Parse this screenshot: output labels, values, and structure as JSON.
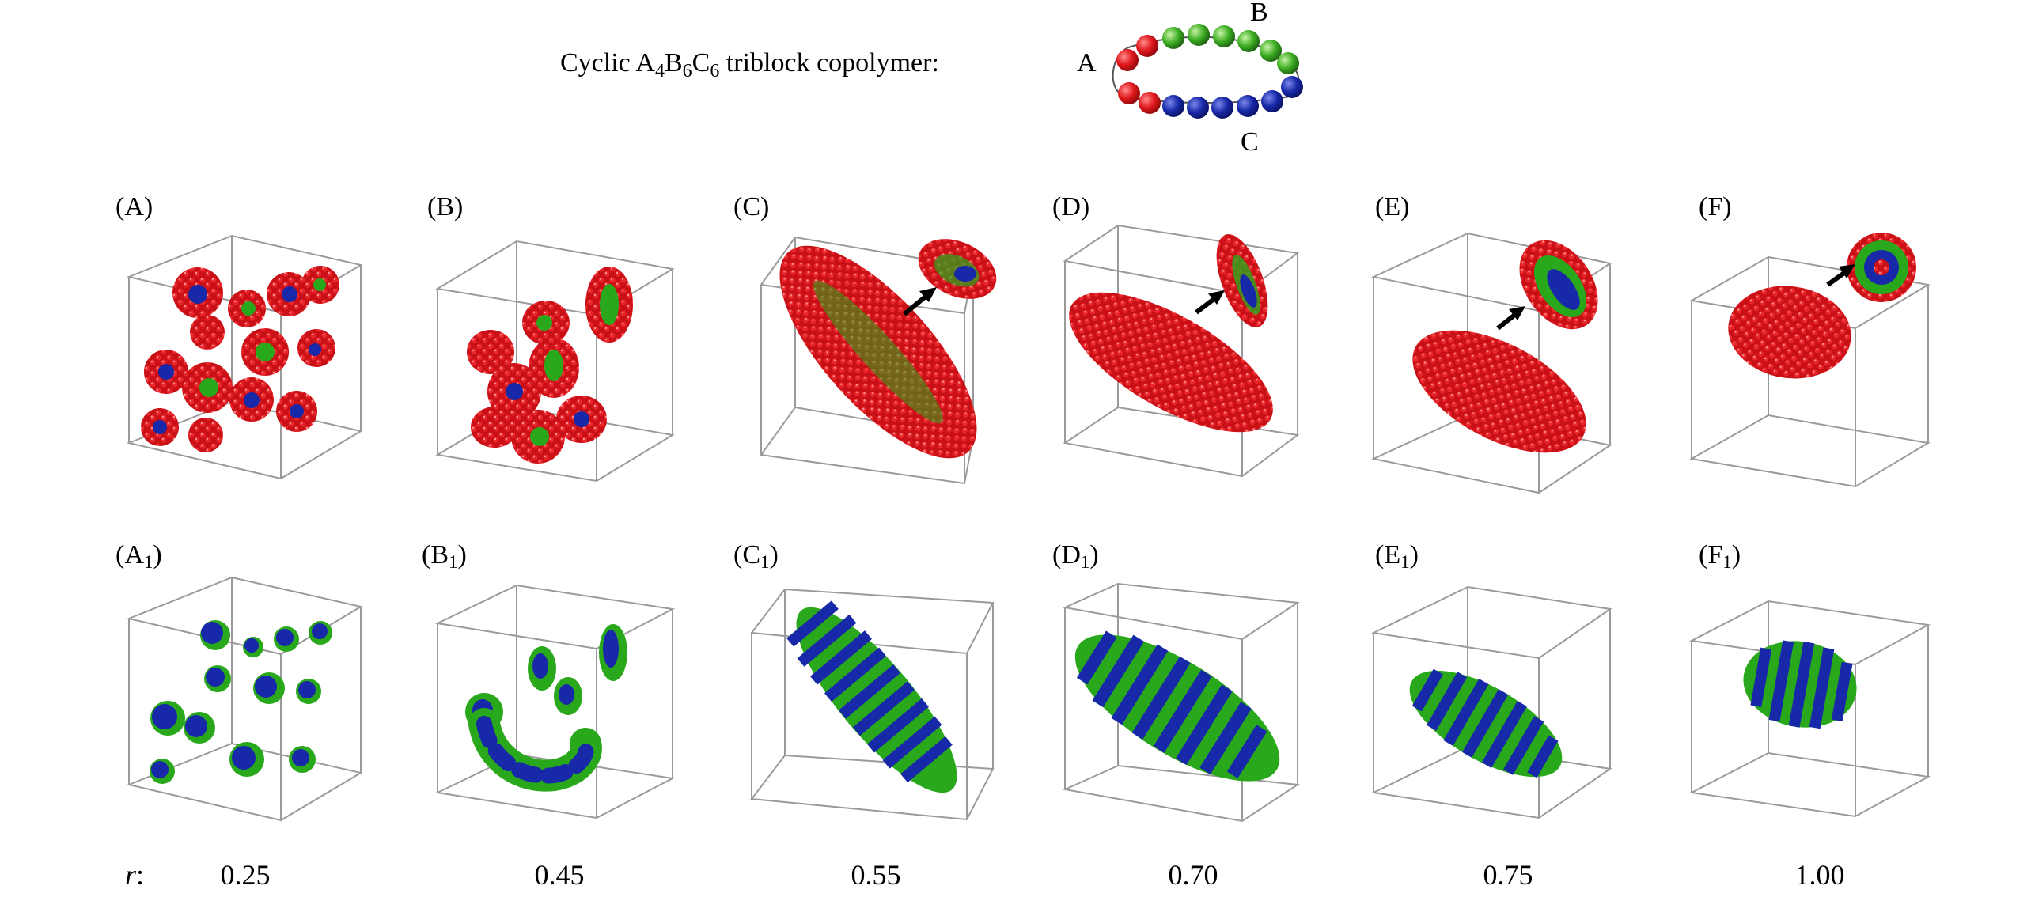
{
  "header": {
    "title_prefix": "Cyclic A",
    "sub_a": "4",
    "mid_b": "B",
    "sub_b": "6",
    "mid_c": "C",
    "sub_c": "6",
    "title_suffix": " triblock copolymer:",
    "bead_label_a": "A",
    "bead_label_b": "B",
    "bead_label_c": "C"
  },
  "colors": {
    "block_a": "#e0161b",
    "block_b": "#35b81c",
    "block_c": "#1728a8",
    "box_edge": "#9a9a9a",
    "arrow": "#000000"
  },
  "panels_top": [
    {
      "label": "(A)",
      "morphology": "many small spherical micelles",
      "inset": false
    },
    {
      "label": "(B)",
      "morphology": "short worm-like micelles",
      "inset": false
    },
    {
      "label": "(C)",
      "morphology": "elongated striped micelle",
      "inset": true
    },
    {
      "label": "(D)",
      "morphology": "elongated striped micelle",
      "inset": true
    },
    {
      "label": "(E)",
      "morphology": "ellipsoidal striped micelle",
      "inset": true
    },
    {
      "label": "(F)",
      "morphology": "compact striped micelle",
      "inset": true
    }
  ],
  "panels_bottom": [
    {
      "letter": "A",
      "sub": "1"
    },
    {
      "letter": "B",
      "sub": "1"
    },
    {
      "letter": "C",
      "sub": "1"
    },
    {
      "letter": "D",
      "sub": "1"
    },
    {
      "letter": "E",
      "sub": "1"
    },
    {
      "letter": "F",
      "sub": "1"
    }
  ],
  "r_row": {
    "symbol": "r",
    "colon": ":",
    "values": [
      "0.25",
      "0.45",
      "0.55",
      "0.70",
      "0.75",
      "1.00"
    ]
  }
}
